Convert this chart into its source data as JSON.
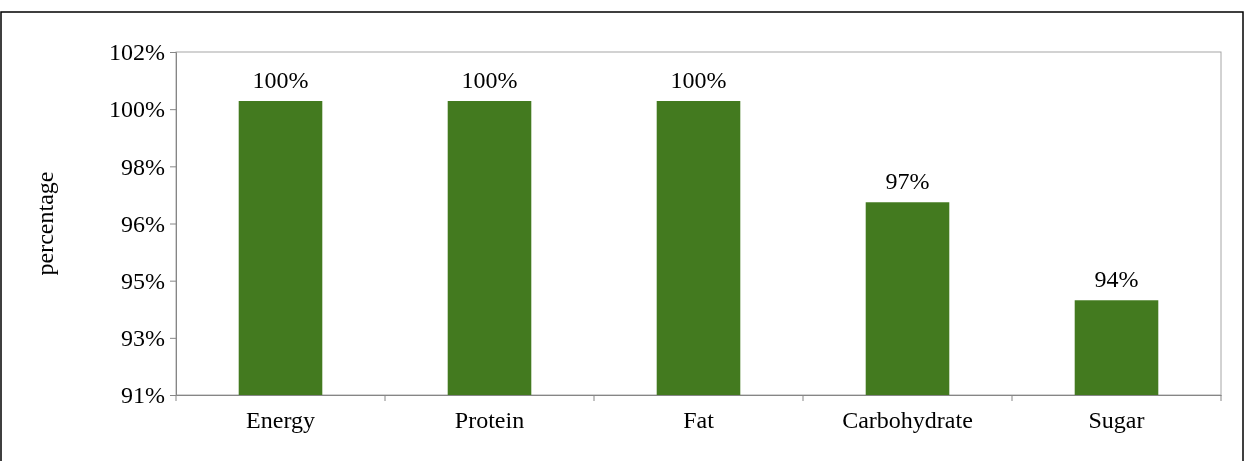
{
  "chart_data": {
    "type": "bar",
    "ylabel": "percentage",
    "categories": [
      "Energy",
      "Protein",
      "Fat",
      "Carbohydrate",
      "Sugar"
    ],
    "values": [
      100,
      100,
      100,
      96.9,
      93.9
    ],
    "color": "#437a1f",
    "value_labels": [
      "100%",
      "100%",
      "100%",
      "97%",
      "94%"
    ],
    "ylim": [
      91,
      101.5
    ],
    "yticks": [
      {
        "value": 91,
        "label": "91%"
      },
      {
        "value": 92.75,
        "label": "93%"
      },
      {
        "value": 94.5,
        "label": "95%"
      },
      {
        "value": 96.25,
        "label": "96%"
      },
      {
        "value": 98,
        "label": "98%"
      },
      {
        "value": 99.75,
        "label": "100%"
      },
      {
        "value": 101.5,
        "label": "102%"
      }
    ],
    "grid": false
  }
}
